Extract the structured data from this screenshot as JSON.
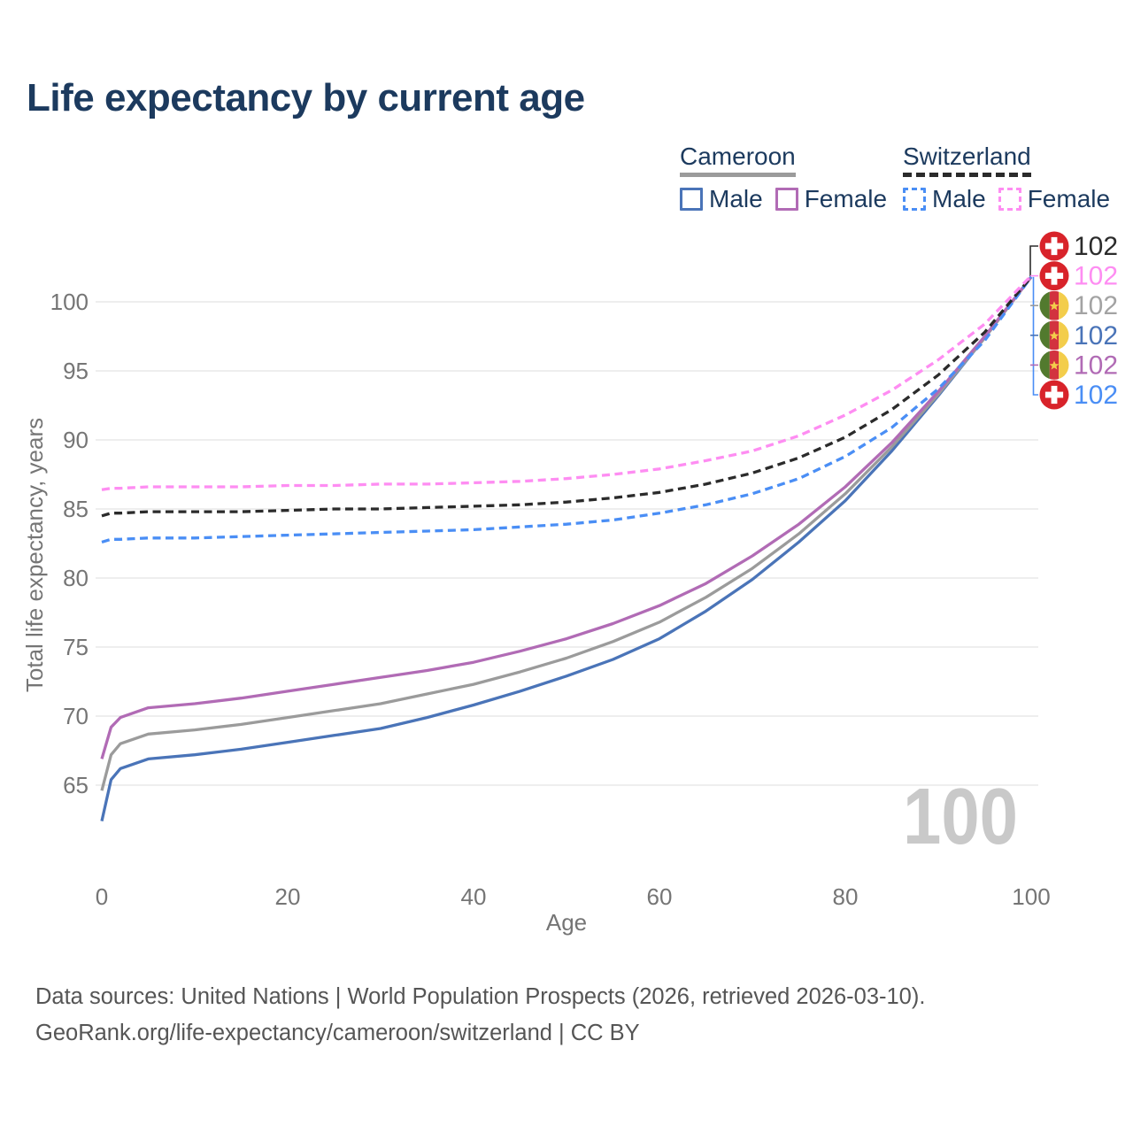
{
  "title": "Life expectancy by current age",
  "legend": {
    "groups": [
      {
        "title": "Cameroon",
        "rule_style": "solid",
        "rule_color": "#9b9b9b",
        "items": [
          {
            "label": "Male",
            "color": "#4a74b8",
            "style": "solid"
          },
          {
            "label": "Female",
            "color": "#b16bb5",
            "style": "solid"
          }
        ]
      },
      {
        "title": "Switzerland",
        "rule_style": "dashed",
        "rule_color": "#2b2b2b",
        "items": [
          {
            "label": "Male",
            "color": "#4a8ef5",
            "style": "dashed"
          },
          {
            "label": "Female",
            "color": "#fe8df2",
            "style": "dashed"
          }
        ]
      }
    ]
  },
  "footer": {
    "line1": "Data sources: United Nations | World Population Prospects (2026, retrieved 2026-03-10).",
    "line2": "GeoRank.org/life-expectancy/cameroon/switzerland | CC BY"
  },
  "chart_data": {
    "type": "line",
    "title": "Life expectancy by current age",
    "xlabel": "Age",
    "ylabel": "Total life expectancy, years",
    "xlim": [
      0,
      100
    ],
    "ylim": [
      62,
      103
    ],
    "x_ticks": [
      0,
      20,
      40,
      60,
      80,
      100
    ],
    "y_ticks": [
      65,
      70,
      75,
      80,
      85,
      90,
      95,
      100
    ],
    "grid": "horizontal-only",
    "legend_position": "top-right",
    "watermark_age_counter": "100",
    "colors": {
      "title_navy": "#1c3a5e",
      "axis_gray": "#757575",
      "gridline": "#e8e8e8",
      "watermark": "#c9c9c9"
    },
    "x": [
      0,
      1,
      2,
      5,
      10,
      15,
      20,
      25,
      30,
      35,
      40,
      45,
      50,
      55,
      60,
      65,
      70,
      75,
      80,
      85,
      90,
      95,
      100
    ],
    "series": [
      {
        "name": "Cameroon Male",
        "color": "#4a74b8",
        "dash": false,
        "values": [
          62.4,
          65.4,
          66.2,
          66.9,
          67.2,
          67.6,
          68.1,
          68.6,
          69.1,
          69.9,
          70.8,
          71.8,
          72.9,
          74.1,
          75.6,
          77.6,
          79.9,
          82.6,
          85.6,
          89.2,
          93.2,
          97.4,
          101.8
        ]
      },
      {
        "name": "Cameroon Both sexes",
        "color": "#9b9b9b",
        "dash": false,
        "values": [
          64.6,
          67.2,
          68.0,
          68.7,
          69.0,
          69.4,
          69.9,
          70.4,
          70.9,
          71.6,
          72.3,
          73.2,
          74.2,
          75.4,
          76.8,
          78.6,
          80.7,
          83.2,
          86.1,
          89.5,
          93.3,
          97.4,
          101.8
        ]
      },
      {
        "name": "Cameroon Female",
        "color": "#b16bb5",
        "dash": false,
        "values": [
          66.9,
          69.2,
          69.9,
          70.6,
          70.9,
          71.3,
          71.8,
          72.3,
          72.8,
          73.3,
          73.9,
          74.7,
          75.6,
          76.7,
          78.0,
          79.6,
          81.6,
          83.9,
          86.6,
          89.8,
          93.5,
          97.5,
          101.8
        ]
      },
      {
        "name": "Switzerland Male",
        "color": "#4a8ef5",
        "dash": true,
        "values": [
          82.6,
          82.8,
          82.8,
          82.9,
          82.9,
          83.0,
          83.1,
          83.2,
          83.3,
          83.4,
          83.5,
          83.7,
          83.9,
          84.2,
          84.7,
          85.3,
          86.1,
          87.2,
          88.8,
          90.9,
          93.7,
          97.2,
          101.8
        ]
      },
      {
        "name": "Switzerland Both sexes",
        "color": "#2b2b2b",
        "dash": true,
        "values": [
          84.5,
          84.7,
          84.7,
          84.8,
          84.8,
          84.8,
          84.9,
          85.0,
          85.0,
          85.1,
          85.2,
          85.3,
          85.5,
          85.8,
          86.2,
          86.8,
          87.6,
          88.7,
          90.2,
          92.2,
          94.7,
          97.8,
          101.8
        ]
      },
      {
        "name": "Switzerland Female",
        "color": "#fe8df2",
        "dash": true,
        "values": [
          86.4,
          86.5,
          86.5,
          86.6,
          86.6,
          86.6,
          86.7,
          86.7,
          86.8,
          86.8,
          86.9,
          87.0,
          87.2,
          87.5,
          87.9,
          88.5,
          89.2,
          90.3,
          91.8,
          93.6,
          95.8,
          98.4,
          101.9
        ]
      }
    ],
    "end_labels": [
      {
        "flag": "switzerland",
        "flag_icon": "switzerland-flag-icon",
        "text": "102",
        "color": "#2b2b2b"
      },
      {
        "flag": "switzerland",
        "flag_icon": "switzerland-flag-icon",
        "text": "102",
        "color": "#fe8df2"
      },
      {
        "flag": "cameroon",
        "flag_icon": "cameroon-flag-icon",
        "text": "102",
        "color": "#a3a3a3"
      },
      {
        "flag": "cameroon",
        "flag_icon": "cameroon-flag-icon",
        "text": "102",
        "color": "#4a74b8"
      },
      {
        "flag": "cameroon",
        "flag_icon": "cameroon-flag-icon",
        "text": "102",
        "color": "#b16bb5"
      },
      {
        "flag": "switzerland",
        "flag_icon": "switzerland-flag-icon",
        "text": "102",
        "color": "#4a8ef5"
      }
    ]
  }
}
